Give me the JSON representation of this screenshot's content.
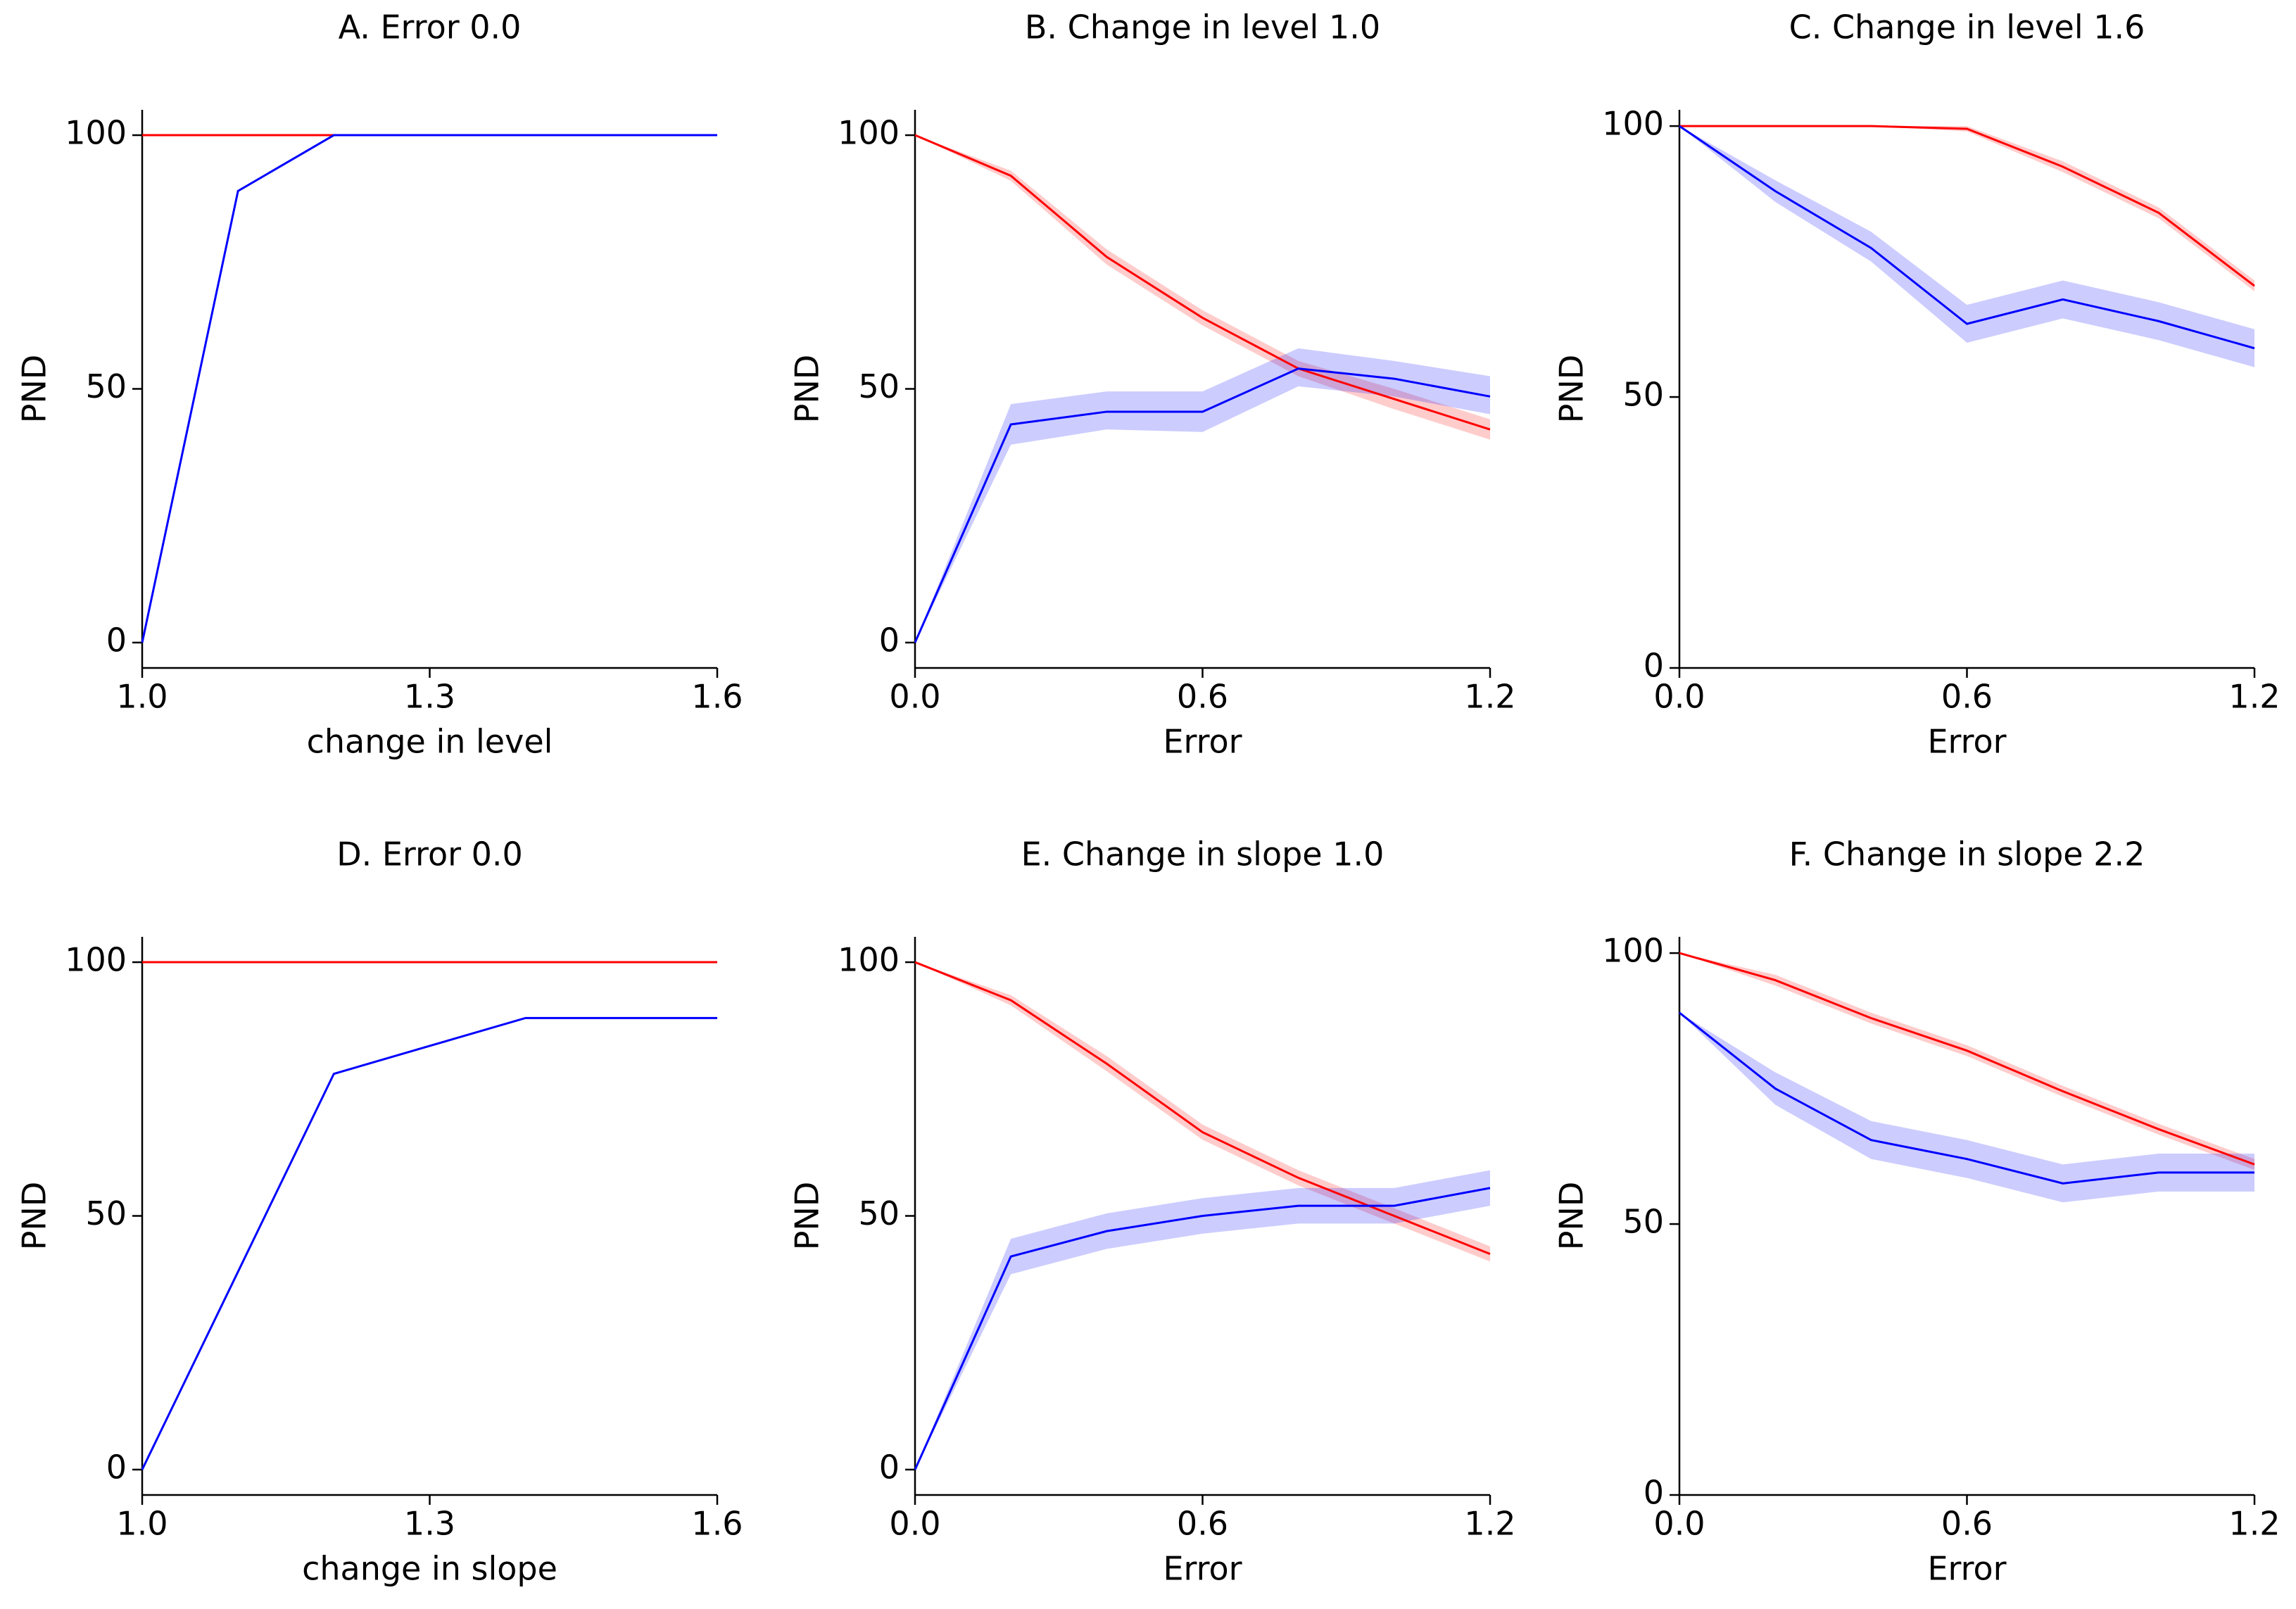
{
  "chart_data": [
    {
      "type": "line",
      "title": "A. Error 0.0",
      "x_label": "change in level",
      "y_label": "PND",
      "x": [
        1.0,
        1.1,
        1.2,
        1.3,
        1.4,
        1.5,
        1.6
      ],
      "xlim": [
        1.0,
        1.6
      ],
      "xticks": [
        {
          "value": 1,
          "label": "1.0"
        },
        1.3,
        1.6
      ],
      "ylim": [
        -5,
        105
      ],
      "yticks": [
        0,
        50,
        100
      ],
      "series": [
        {
          "color": "#ff0000",
          "values": [
            100,
            100,
            100,
            100,
            100,
            100,
            100
          ]
        },
        {
          "color": "#0000ff",
          "values": [
            0,
            89,
            100,
            100,
            100,
            100,
            100
          ]
        }
      ]
    },
    {
      "type": "line",
      "title": "B. Change in level 1.0",
      "x_label": "Error",
      "y_label": "PND",
      "x": [
        0,
        0.2,
        0.4,
        0.6,
        0.8,
        1.0,
        1.2
      ],
      "xlim": [
        0,
        1.2
      ],
      "xticks": [
        {
          "value": 0,
          "label": "0.0"
        },
        0.6,
        1.2
      ],
      "ylim": [
        -5,
        105
      ],
      "yticks": [
        0,
        50,
        100
      ],
      "series": [
        {
          "color": "#ff0000",
          "values": [
            100,
            92,
            76,
            64,
            54,
            48,
            42
          ],
          "lower": [
            100,
            91,
            74.5,
            62.5,
            52.5,
            46,
            40
          ],
          "upper": [
            100,
            93,
            77.5,
            65.5,
            55.5,
            50,
            44
          ]
        },
        {
          "color": "#0000ff",
          "values": [
            0,
            43,
            45.5,
            45.5,
            54,
            52,
            48.5
          ],
          "lower": [
            0,
            39,
            42,
            41.5,
            50.5,
            48.5,
            45
          ],
          "upper": [
            0,
            47,
            49.5,
            49.5,
            58,
            55.5,
            52.5
          ]
        }
      ]
    },
    {
      "type": "line",
      "title": "C. Change in level 1.6",
      "x_label": "Error",
      "y_label": "PND",
      "x": [
        0,
        0.2,
        0.4,
        0.6,
        0.8,
        1.0,
        1.2
      ],
      "xlim": [
        0,
        1.2
      ],
      "xticks": [
        {
          "value": 0,
          "label": "0.0"
        },
        0.6,
        1.2
      ],
      "ylim": [
        0,
        103
      ],
      "yticks": [
        0,
        50,
        100
      ],
      "series": [
        {
          "color": "#ff0000",
          "values": [
            100,
            100,
            100,
            99.5,
            92.5,
            84,
            70.5
          ],
          "lower": [
            100,
            100,
            100,
            99,
            91.5,
            83,
            69.5
          ],
          "upper": [
            100,
            100,
            100,
            100,
            93.5,
            85,
            71.5
          ]
        },
        {
          "color": "#0000ff",
          "values": [
            100,
            88,
            77.5,
            63.5,
            68,
            64,
            59
          ],
          "lower": [
            100,
            86,
            75,
            60,
            64.5,
            60.5,
            55.5
          ],
          "upper": [
            100,
            90,
            80.5,
            67,
            71.5,
            67.5,
            62.5
          ]
        }
      ]
    },
    {
      "type": "line",
      "title": "D. Error 0.0",
      "x_label": "change in slope",
      "y_label": "PND",
      "x": [
        1.0,
        1.1,
        1.2,
        1.3,
        1.4,
        1.5,
        1.6
      ],
      "xlim": [
        1.0,
        1.6
      ],
      "xticks": [
        {
          "value": 1,
          "label": "1.0"
        },
        1.3,
        1.6
      ],
      "ylim": [
        -5,
        105
      ],
      "yticks": [
        0,
        50,
        100
      ],
      "series": [
        {
          "color": "#ff0000",
          "values": [
            100,
            100,
            100,
            100,
            100,
            100,
            100
          ]
        },
        {
          "color": "#0000ff",
          "values": [
            0,
            39,
            78,
            83.5,
            89,
            89,
            89
          ]
        }
      ]
    },
    {
      "type": "line",
      "title": "E. Change in slope 1.0",
      "x_label": "Error",
      "y_label": "PND",
      "x": [
        0,
        0.2,
        0.4,
        0.6,
        0.8,
        1.0,
        1.2
      ],
      "xlim": [
        0,
        1.2
      ],
      "xticks": [
        {
          "value": 0,
          "label": "0.0"
        },
        0.6,
        1.2
      ],
      "ylim": [
        -5,
        105
      ],
      "yticks": [
        0,
        50,
        100
      ],
      "series": [
        {
          "color": "#ff0000",
          "values": [
            100,
            92.5,
            80,
            66.5,
            57.5,
            50,
            42.5
          ],
          "lower": [
            100,
            91.5,
            78.5,
            65,
            56,
            48.5,
            41
          ],
          "upper": [
            100,
            93.5,
            81.5,
            68,
            59,
            51.5,
            44
          ]
        },
        {
          "color": "#0000ff",
          "values": [
            0,
            42,
            47,
            50,
            52,
            52,
            55.5
          ],
          "lower": [
            0,
            38.5,
            43.5,
            46.5,
            48.5,
            48.5,
            52
          ],
          "upper": [
            0,
            45.5,
            50.5,
            53.5,
            55.5,
            55.5,
            59
          ]
        }
      ]
    },
    {
      "type": "line",
      "title": "F. Change in slope 2.2",
      "x_label": "Error",
      "y_label": "PND",
      "x": [
        0,
        0.2,
        0.4,
        0.6,
        0.8,
        1.0,
        1.2
      ],
      "xlim": [
        0,
        1.2
      ],
      "xticks": [
        {
          "value": 0,
          "label": "0.0"
        },
        0.6,
        1.2
      ],
      "ylim": [
        0,
        103
      ],
      "yticks": [
        0,
        50,
        100
      ],
      "series": [
        {
          "color": "#ff0000",
          "values": [
            100,
            95,
            88,
            82,
            74.5,
            67.5,
            61
          ],
          "lower": [
            100,
            94,
            87,
            81,
            73.5,
            66.5,
            60
          ],
          "upper": [
            100,
            96,
            89,
            83,
            75.5,
            68.5,
            62
          ]
        },
        {
          "color": "#0000ff",
          "values": [
            89,
            75,
            65.5,
            62,
            57.5,
            59.5,
            59.5
          ],
          "lower": [
            89,
            72,
            62,
            58.5,
            54,
            56,
            56
          ],
          "upper": [
            89,
            78,
            69,
            65.5,
            61,
            63,
            63
          ]
        }
      ]
    }
  ]
}
